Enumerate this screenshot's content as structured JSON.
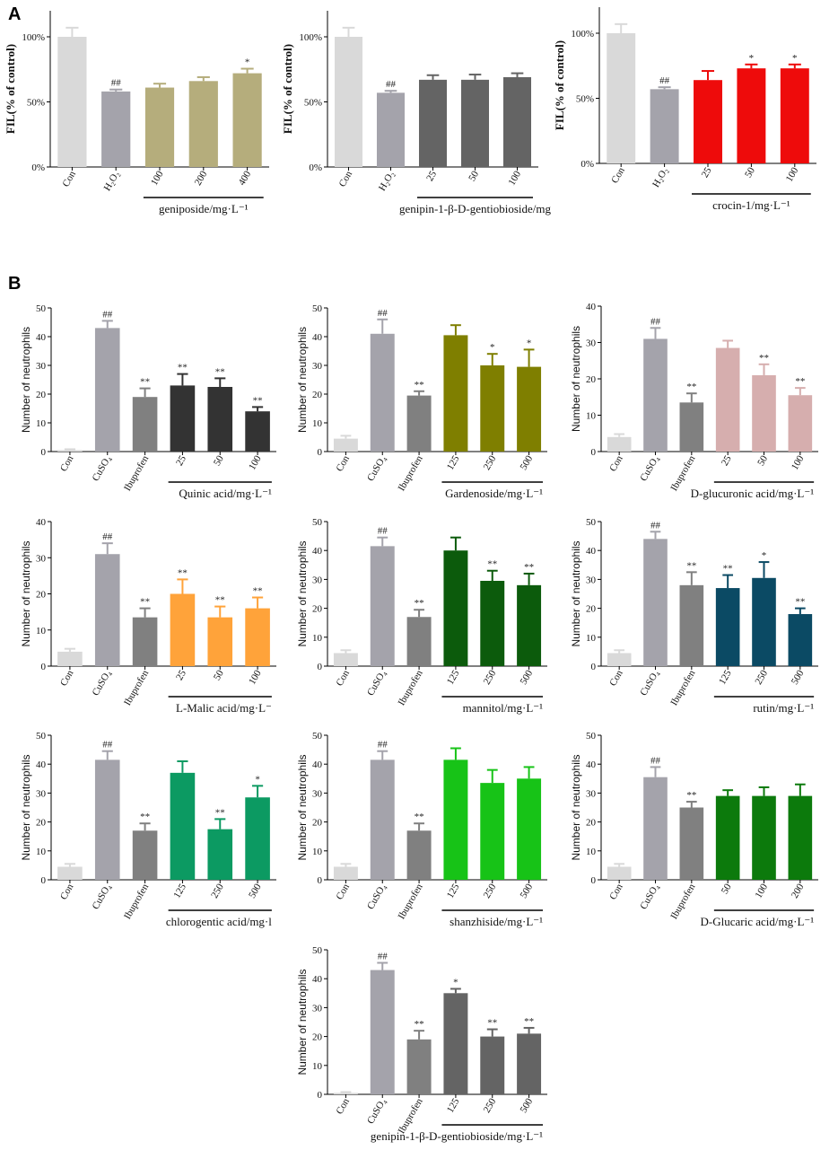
{
  "figure": {
    "panel_a_label": "A",
    "panel_b_label": "B"
  },
  "chart_data": [
    {
      "id": "a1",
      "type": "bar",
      "panel": "A",
      "ylabel": "FIL(% of control)",
      "ylim": [
        0,
        120
      ],
      "yticks": [
        {
          "v": 0,
          "label": "0%"
        },
        {
          "v": 50,
          "label": "50%"
        },
        {
          "v": 100,
          "label": "100%"
        }
      ],
      "categories": [
        "Con",
        "H₂O₂",
        "100",
        "200",
        "400"
      ],
      "values": [
        100,
        58,
        61,
        66,
        72
      ],
      "errors": [
        7,
        1.5,
        3,
        3,
        3.5
      ],
      "significance": [
        "",
        "##",
        "",
        "",
        "*"
      ],
      "colors": [
        "#d9d9d9",
        "#a4a3ab",
        "#b5ad7c",
        "#b5ad7c",
        "#b5ad7c"
      ],
      "group_label": "geniposide/mg·L⁻¹",
      "group_from": 2,
      "group_to": 4
    },
    {
      "id": "a2",
      "type": "bar",
      "panel": "A",
      "ylabel": "FIL(% of control)",
      "ylim": [
        0,
        120
      ],
      "yticks": [
        {
          "v": 0,
          "label": "0%"
        },
        {
          "v": 50,
          "label": "50%"
        },
        {
          "v": 100,
          "label": "100%"
        }
      ],
      "categories": [
        "Con",
        "H₂O₂",
        "25",
        "50",
        "100"
      ],
      "values": [
        100,
        57,
        67,
        67,
        69
      ],
      "errors": [
        7,
        1.5,
        3.5,
        4,
        3
      ],
      "significance": [
        "",
        "##",
        "",
        "",
        ""
      ],
      "colors": [
        "#d9d9d9",
        "#a4a3ab",
        "#646464",
        "#646464",
        "#646464"
      ],
      "group_label": "genipin-1-β-D-gentiobioside/mg",
      "group_from": 2,
      "group_to": 4
    },
    {
      "id": "a3",
      "type": "bar",
      "panel": "A",
      "ylabel": "FIL(% of control)",
      "ylim": [
        0,
        120
      ],
      "yticks": [
        {
          "v": 0,
          "label": "0%"
        },
        {
          "v": 50,
          "label": "50%"
        },
        {
          "v": 100,
          "label": "100%"
        }
      ],
      "categories": [
        "Con",
        "H₂O₂",
        "25",
        "50",
        "100"
      ],
      "values": [
        100,
        57,
        64,
        73,
        73
      ],
      "errors": [
        7,
        1.5,
        7,
        3,
        3
      ],
      "significance": [
        "",
        "##",
        "",
        "*",
        "*"
      ],
      "colors": [
        "#d9d9d9",
        "#a4a3ab",
        "#ee0b0b",
        "#ee0b0b",
        "#ee0b0b"
      ],
      "group_label": "crocin-1/mg·L⁻¹",
      "group_from": 2,
      "group_to": 4
    },
    {
      "id": "b1",
      "type": "bar",
      "panel": "B",
      "ylabel": "Number of neutrophils",
      "ylim": [
        0,
        50
      ],
      "yticks": [
        {
          "v": 0,
          "label": "0"
        },
        {
          "v": 10,
          "label": "10"
        },
        {
          "v": 20,
          "label": "20"
        },
        {
          "v": 30,
          "label": "30"
        },
        {
          "v": 40,
          "label": "40"
        },
        {
          "v": 50,
          "label": "50"
        }
      ],
      "categories": [
        "Con",
        "CuSO₄",
        "Ibuprofen",
        "25",
        "50",
        "100"
      ],
      "values": [
        0.5,
        43,
        19,
        23,
        22.5,
        14
      ],
      "errors": [
        0.3,
        2.5,
        3,
        4,
        3,
        1.5
      ],
      "significance": [
        "",
        "##",
        "**",
        "**",
        "**",
        "**"
      ],
      "colors": [
        "#d9d9d9",
        "#a4a3ab",
        "#808080",
        "#333333",
        "#333333",
        "#333333"
      ],
      "group_label": "Quinic acid/mg·L⁻¹",
      "group_from": 3,
      "group_to": 5
    },
    {
      "id": "b2",
      "type": "bar",
      "panel": "B",
      "ylabel": "Number of neutrophils",
      "ylim": [
        0,
        50
      ],
      "yticks": [
        {
          "v": 0,
          "label": "0"
        },
        {
          "v": 10,
          "label": "10"
        },
        {
          "v": 20,
          "label": "20"
        },
        {
          "v": 30,
          "label": "30"
        },
        {
          "v": 40,
          "label": "40"
        },
        {
          "v": 50,
          "label": "50"
        }
      ],
      "categories": [
        "Con",
        "CuSO₄",
        "Ibuprofen",
        "125",
        "250",
        "500"
      ],
      "values": [
        4.5,
        41,
        19.5,
        40.5,
        30,
        29.5
      ],
      "errors": [
        1,
        5,
        1.5,
        3.5,
        4,
        6
      ],
      "significance": [
        "",
        "##",
        "**",
        "",
        "*",
        "*"
      ],
      "colors": [
        "#d9d9d9",
        "#a4a3ab",
        "#808080",
        "#7f7f00",
        "#7f7f00",
        "#7f7f00"
      ],
      "group_label": "Gardenoside/mg·L⁻¹",
      "group_from": 3,
      "group_to": 5
    },
    {
      "id": "b3",
      "type": "bar",
      "panel": "B",
      "ylabel": "Number of neutrophils",
      "ylim": [
        0,
        40
      ],
      "yticks": [
        {
          "v": 0,
          "label": "0"
        },
        {
          "v": 10,
          "label": "10"
        },
        {
          "v": 20,
          "label": "20"
        },
        {
          "v": 30,
          "label": "30"
        },
        {
          "v": 40,
          "label": "40"
        }
      ],
      "categories": [
        "Con",
        "CuSO₄",
        "Ibuprofen",
        "25",
        "50",
        "100"
      ],
      "values": [
        4,
        31,
        13.5,
        28.5,
        21,
        15.5
      ],
      "errors": [
        0.8,
        3,
        2.5,
        2,
        3,
        2
      ],
      "significance": [
        "",
        "##",
        "**",
        "",
        "**",
        "**"
      ],
      "colors": [
        "#d9d9d9",
        "#a4a3ab",
        "#808080",
        "#d6aeae",
        "#d6aeae",
        "#d6aeae"
      ],
      "group_label": "D-glucuronic acid/mg·L⁻¹",
      "group_from": 3,
      "group_to": 5
    },
    {
      "id": "b4",
      "type": "bar",
      "panel": "B",
      "ylabel": "Number of neutrophils",
      "ylim": [
        0,
        40
      ],
      "yticks": [
        {
          "v": 0,
          "label": "0"
        },
        {
          "v": 10,
          "label": "10"
        },
        {
          "v": 20,
          "label": "20"
        },
        {
          "v": 30,
          "label": "30"
        },
        {
          "v": 40,
          "label": "40"
        }
      ],
      "categories": [
        "Con",
        "CuSO₄",
        "Ibuprofen",
        "25",
        "50",
        "100"
      ],
      "values": [
        4,
        31,
        13.5,
        20,
        13.5,
        16
      ],
      "errors": [
        0.8,
        3,
        2.5,
        4,
        3,
        3
      ],
      "significance": [
        "",
        "##",
        "**",
        "**",
        "**",
        "**"
      ],
      "colors": [
        "#d9d9d9",
        "#a4a3ab",
        "#808080",
        "#ffa33a",
        "#ffa33a",
        "#ffa33a"
      ],
      "group_label": "L-Malic acid/mg·L⁻",
      "group_from": 3,
      "group_to": 5
    },
    {
      "id": "b5",
      "type": "bar",
      "panel": "B",
      "ylabel": "Number of neutrophils",
      "ylim": [
        0,
        50
      ],
      "yticks": [
        {
          "v": 0,
          "label": "0"
        },
        {
          "v": 10,
          "label": "10"
        },
        {
          "v": 20,
          "label": "20"
        },
        {
          "v": 30,
          "label": "30"
        },
        {
          "v": 40,
          "label": "40"
        },
        {
          "v": 50,
          "label": "50"
        }
      ],
      "categories": [
        "Con",
        "CuSO₄",
        "Ibuprofen",
        "125",
        "250",
        "500"
      ],
      "values": [
        4.5,
        41.5,
        17,
        40,
        29.5,
        28
      ],
      "errors": [
        1,
        3,
        2.5,
        4.5,
        3.5,
        4
      ],
      "significance": [
        "",
        "##",
        "**",
        "",
        "**",
        "**"
      ],
      "colors": [
        "#d9d9d9",
        "#a4a3ab",
        "#808080",
        "#0c5b0c",
        "#0c5b0c",
        "#0c5b0c"
      ],
      "group_label": "mannitol/mg·L⁻¹",
      "group_from": 3,
      "group_to": 5
    },
    {
      "id": "b6",
      "type": "bar",
      "panel": "B",
      "ylabel": "Number of neutrophils",
      "ylim": [
        0,
        50
      ],
      "yticks": [
        {
          "v": 0,
          "label": "0"
        },
        {
          "v": 10,
          "label": "10"
        },
        {
          "v": 20,
          "label": "20"
        },
        {
          "v": 30,
          "label": "30"
        },
        {
          "v": 40,
          "label": "40"
        },
        {
          "v": 50,
          "label": "50"
        }
      ],
      "categories": [
        "Con",
        "CuSO₄",
        "Ibuprofen",
        "125",
        "250",
        "500"
      ],
      "values": [
        4.5,
        44,
        28,
        27,
        30.5,
        18
      ],
      "errors": [
        1,
        2.5,
        4.5,
        4.5,
        5.5,
        2
      ],
      "significance": [
        "",
        "##",
        "**",
        "**",
        "*",
        "**"
      ],
      "colors": [
        "#d9d9d9",
        "#a4a3ab",
        "#808080",
        "#0b4a64",
        "#0b4a64",
        "#0b4a64"
      ],
      "group_label": "rutin/mg·L⁻¹",
      "group_from": 3,
      "group_to": 5
    },
    {
      "id": "b7",
      "type": "bar",
      "panel": "B",
      "ylabel": "Number of neutrophils",
      "ylim": [
        0,
        50
      ],
      "yticks": [
        {
          "v": 0,
          "label": "0"
        },
        {
          "v": 10,
          "label": "10"
        },
        {
          "v": 20,
          "label": "20"
        },
        {
          "v": 30,
          "label": "30"
        },
        {
          "v": 40,
          "label": "40"
        },
        {
          "v": 50,
          "label": "50"
        }
      ],
      "categories": [
        "Con",
        "CuSO₄",
        "Ibuprofen",
        "125",
        "250",
        "500"
      ],
      "values": [
        4.5,
        41.5,
        17,
        37,
        17.5,
        28.5
      ],
      "errors": [
        1,
        3,
        2.5,
        4,
        3.5,
        4
      ],
      "significance": [
        "",
        "##",
        "**",
        "",
        "**",
        "*"
      ],
      "colors": [
        "#d9d9d9",
        "#a4a3ab",
        "#808080",
        "#0c9a62",
        "#0c9a62",
        "#0c9a62"
      ],
      "group_label": "chlorogentic acid/mg·l",
      "group_from": 3,
      "group_to": 5
    },
    {
      "id": "b8",
      "type": "bar",
      "panel": "B",
      "ylabel": "Number of neutrophils",
      "ylim": [
        0,
        50
      ],
      "yticks": [
        {
          "v": 0,
          "label": "0"
        },
        {
          "v": 10,
          "label": "10"
        },
        {
          "v": 20,
          "label": "20"
        },
        {
          "v": 30,
          "label": "30"
        },
        {
          "v": 40,
          "label": "40"
        },
        {
          "v": 50,
          "label": "50"
        }
      ],
      "categories": [
        "Con",
        "CuSO₄",
        "Ibuprofen",
        "125",
        "250",
        "500"
      ],
      "values": [
        4.5,
        41.5,
        17,
        41.5,
        33.5,
        35
      ],
      "errors": [
        1,
        3,
        2.5,
        4,
        4.5,
        4
      ],
      "significance": [
        "",
        "##",
        "**",
        "",
        "",
        ""
      ],
      "colors": [
        "#d9d9d9",
        "#a4a3ab",
        "#808080",
        "#17c317",
        "#17c317",
        "#17c317"
      ],
      "group_label": "shanzhiside/mg·L⁻¹",
      "group_from": 3,
      "group_to": 5
    },
    {
      "id": "b9",
      "type": "bar",
      "panel": "B",
      "ylabel": "Number of neutrophils",
      "ylim": [
        0,
        50
      ],
      "yticks": [
        {
          "v": 0,
          "label": "0"
        },
        {
          "v": 10,
          "label": "10"
        },
        {
          "v": 20,
          "label": "20"
        },
        {
          "v": 30,
          "label": "30"
        },
        {
          "v": 40,
          "label": "40"
        },
        {
          "v": 50,
          "label": "50"
        }
      ],
      "categories": [
        "Con",
        "CuSO₄",
        "Ibuprofen",
        "50",
        "100",
        "200"
      ],
      "values": [
        4.5,
        35.5,
        25,
        29,
        29,
        29
      ],
      "errors": [
        1,
        3.5,
        2,
        2,
        3,
        4
      ],
      "significance": [
        "",
        "##",
        "**",
        "",
        "",
        ""
      ],
      "colors": [
        "#d9d9d9",
        "#a4a3ab",
        "#808080",
        "#0c7a0c",
        "#0c7a0c",
        "#0c7a0c"
      ],
      "group_label": "D-Glucaric acid/mg·L⁻¹",
      "group_from": 3,
      "group_to": 5
    },
    {
      "id": "b10",
      "type": "bar",
      "panel": "B",
      "ylabel": "Number of neutrophils",
      "ylim": [
        0,
        50
      ],
      "yticks": [
        {
          "v": 0,
          "label": "0"
        },
        {
          "v": 10,
          "label": "10"
        },
        {
          "v": 20,
          "label": "20"
        },
        {
          "v": 30,
          "label": "30"
        },
        {
          "v": 40,
          "label": "40"
        },
        {
          "v": 50,
          "label": "50"
        }
      ],
      "categories": [
        "Con",
        "CuSO₄",
        "Ibuprofen",
        "125",
        "250",
        "500"
      ],
      "values": [
        0.5,
        43,
        19,
        35,
        20,
        21
      ],
      "errors": [
        0.3,
        2.5,
        3,
        1.5,
        2.5,
        2
      ],
      "significance": [
        "",
        "##",
        "**",
        "*",
        "**",
        "**"
      ],
      "colors": [
        "#d9d9d9",
        "#a4a3ab",
        "#808080",
        "#646464",
        "#646464",
        "#646464"
      ],
      "group_label": "genipin-1-β-D-gentiobioside/mg·L⁻¹",
      "group_from": 3,
      "group_to": 5
    }
  ]
}
